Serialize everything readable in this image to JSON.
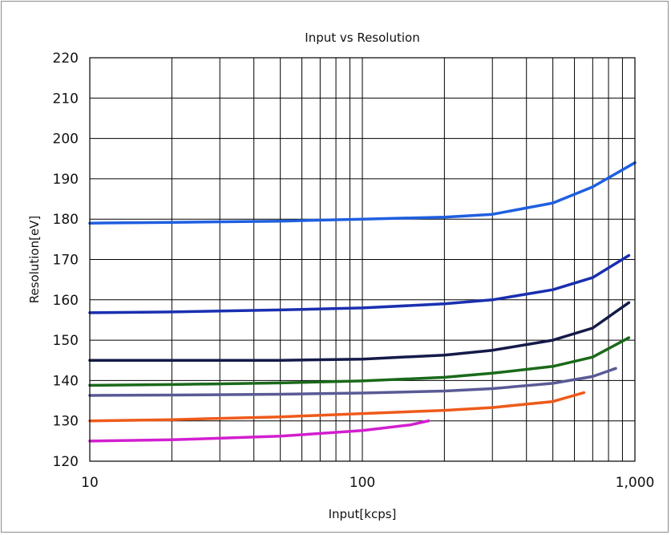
{
  "chart_data": {
    "type": "line",
    "title": "Input vs Resolution",
    "xlabel": "Input[kcps]",
    "ylabel": "Resolution[eV]",
    "x_scale": "log",
    "xlim": [
      10,
      1000
    ],
    "ylim": [
      120,
      220
    ],
    "grid": true,
    "x_tick_values": [
      10,
      100,
      1000
    ],
    "x_tick_labels": [
      "10",
      "100",
      "1,000"
    ],
    "y_ticks": [
      120,
      130,
      140,
      150,
      160,
      170,
      180,
      190,
      200,
      210,
      220
    ],
    "series": [
      {
        "color": "#1f5fe0",
        "x": [
          10,
          20,
          50,
          100,
          200,
          300,
          500,
          700,
          1000
        ],
        "y": [
          179,
          179.2,
          179.5,
          180,
          180.5,
          181.2,
          184,
          188,
          194
        ]
      },
      {
        "color": "#1a2fb0",
        "x": [
          10,
          20,
          50,
          100,
          200,
          300,
          500,
          700,
          950
        ],
        "y": [
          156.8,
          157,
          157.5,
          158,
          159,
          160,
          162.5,
          165.5,
          171
        ]
      },
      {
        "color": "#141a48",
        "x": [
          10,
          20,
          50,
          100,
          200,
          300,
          500,
          700,
          950
        ],
        "y": [
          145,
          145,
          145,
          145.3,
          146.3,
          147.5,
          150,
          153,
          159.3
        ]
      },
      {
        "color": "#1a6a1a",
        "x": [
          10,
          20,
          50,
          100,
          200,
          300,
          500,
          700,
          950
        ],
        "y": [
          138.8,
          139,
          139.4,
          139.9,
          140.8,
          141.8,
          143.5,
          145.8,
          150.6
        ]
      },
      {
        "color": "#5a5a96",
        "x": [
          10,
          20,
          50,
          100,
          200,
          300,
          500,
          700,
          850
        ],
        "y": [
          136.3,
          136.4,
          136.6,
          136.9,
          137.4,
          138,
          139.3,
          141,
          143
        ]
      },
      {
        "color": "#ee5a1a",
        "x": [
          10,
          20,
          50,
          100,
          200,
          300,
          500,
          650
        ],
        "y": [
          130,
          130.3,
          131,
          131.8,
          132.6,
          133.3,
          134.8,
          137
        ]
      },
      {
        "color": "#d21fcf",
        "x": [
          10,
          20,
          50,
          100,
          150,
          175
        ],
        "y": [
          125,
          125.3,
          126.2,
          127.6,
          129,
          130
        ]
      }
    ]
  }
}
